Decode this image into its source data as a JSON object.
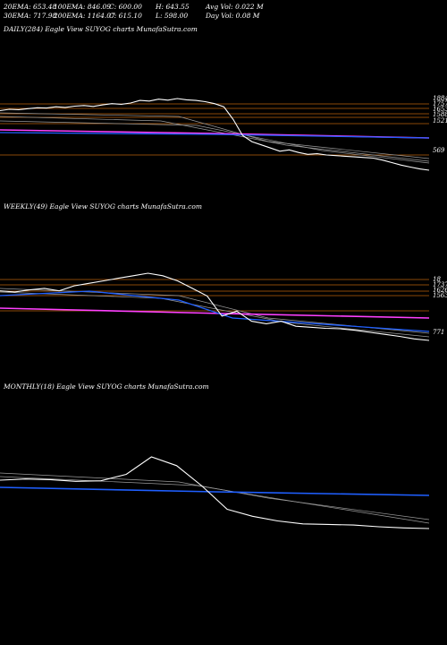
{
  "header": {
    "row1": [
      "20EMA: 653.48",
      "100EMA: 846.09",
      "C: 600.00",
      "H: 643.55",
      "Avg Vol: 0.022  M"
    ],
    "row2": [
      "30EMA: 717.98",
      "200EMA: 1164.07",
      "C: 615.10",
      "L: 598.00",
      "Day Vol: 0.08  M"
    ]
  },
  "chart_data": [
    {
      "type": "line",
      "title": "DAILY(284) Eagle   View  SUYOG charts MunafaSutra.com",
      "price_levels": [
        "1884",
        "1757",
        "1653",
        "1588",
        "1521",
        "569"
      ],
      "colors": {
        "price": "#ffffff",
        "ema_short": "#1f5fff",
        "ema_long": "#ff40ff",
        "levels": "#b8600a"
      },
      "price": [
        1540,
        1560,
        1555,
        1570,
        1585,
        1580,
        1600,
        1590,
        1610,
        1620,
        1605,
        1630,
        1650,
        1640,
        1660,
        1700,
        1690,
        1720,
        1705,
        1730,
        1710,
        1700,
        1680,
        1650,
        1600,
        1400,
        1150,
        1050,
        1000,
        950,
        900,
        920,
        880,
        850,
        860,
        840,
        830,
        820,
        810,
        800,
        790,
        760,
        720,
        680,
        650,
        620,
        600
      ]
    },
    {
      "type": "line",
      "title": "WEEKLY(49) Eagle   View  SUYOG charts MunafaSutra.com",
      "price_levels": [
        "18",
        "1737",
        "1626",
        "1563",
        "771"
      ],
      "colors": {
        "price": "#ffffff",
        "ema_short": "#1f5fff",
        "ema_long": "#ff40ff",
        "levels": "#b8600a"
      },
      "price": [
        1600,
        1580,
        1620,
        1650,
        1600,
        1700,
        1750,
        1800,
        1850,
        1900,
        1950,
        1900,
        1800,
        1650,
        1500,
        1100,
        1200,
        1000,
        950,
        1000,
        900,
        880,
        860,
        850,
        820,
        780,
        740,
        700,
        650,
        620
      ]
    },
    {
      "type": "line",
      "title": "MONTHLY(18) Eagle   View  SUYOG charts MunafaSutra.com",
      "price_levels": [],
      "colors": {
        "price": "#ffffff",
        "ema_short": "#1f5fff",
        "levels": "#b8600a"
      },
      "price": [
        1400,
        1420,
        1410,
        1380,
        1390,
        1500,
        1800,
        1650,
        1300,
        900,
        780,
        700,
        650,
        640,
        630,
        600,
        580,
        570
      ]
    }
  ]
}
